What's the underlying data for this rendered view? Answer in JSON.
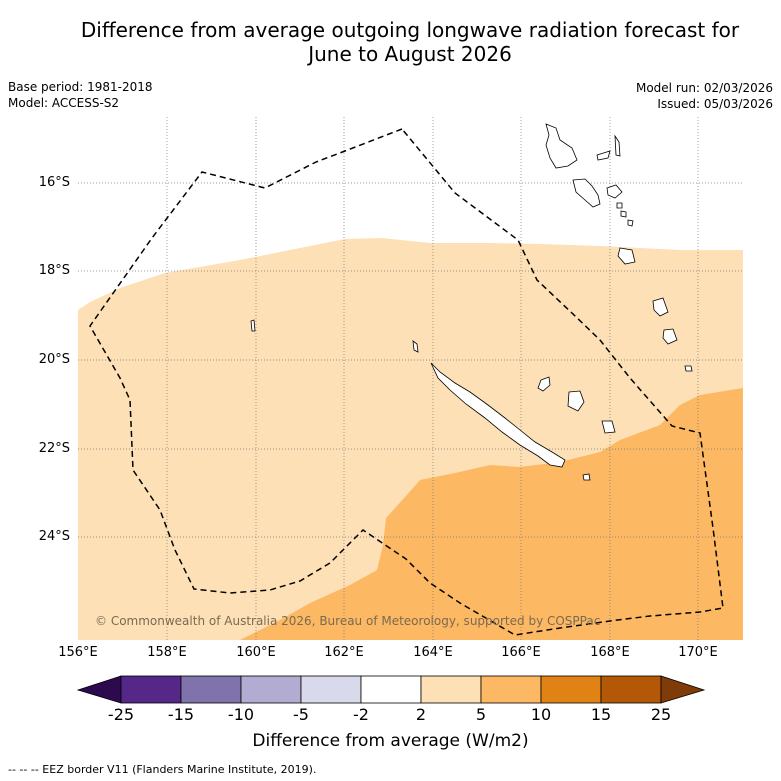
{
  "title": "Difference from average outgoing longwave radiation forecast for June to August 2026",
  "title_line1": "Difference from average outgoing longwave radiation forecast for",
  "title_line2": "June to August 2026",
  "base_period": "Base period: 1981-2018",
  "model": "Model: ACCESS-S2",
  "model_run": "Model run: 02/03/2026",
  "issued": "Issued: 05/03/2026",
  "lat_labels": [
    "16°S",
    "18°S",
    "20°S",
    "22°S",
    "24°S"
  ],
  "lon_labels": [
    "156°E",
    "158°E",
    "160°E",
    "162°E",
    "164°E",
    "166°E",
    "168°E",
    "170°E"
  ],
  "colorbar": {
    "ticks": [
      "-25",
      "-15",
      "-10",
      "-5",
      "-2",
      "2",
      "5",
      "10",
      "15",
      "25"
    ],
    "colors": [
      "#2d0a4e",
      "#542788",
      "#8073ac",
      "#b2abd2",
      "#d8daeb",
      "#ffffff",
      "#fee0b6",
      "#fdb863",
      "#e08214",
      "#b35806",
      "#7f3b08"
    ],
    "title": "Difference from average (W/m2)"
  },
  "legend_text": "-- -- -- EEZ border V11 (Flanders Marine Institute, 2019).",
  "copyright": "© Commonwealth of Australia 2026, Bureau of Meteorology, supported by COSPPac",
  "map_colors": {
    "band_2_5": "#fee0b6",
    "band_5_10": "#fdb863"
  }
}
